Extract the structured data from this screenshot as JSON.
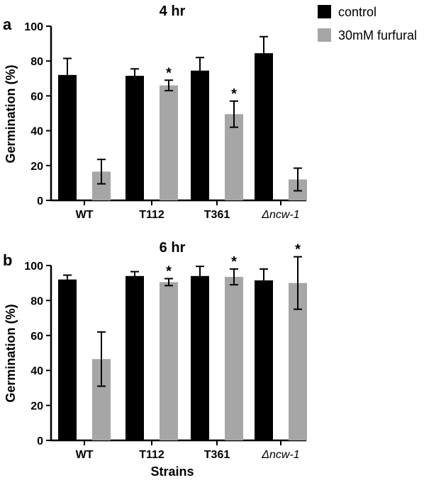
{
  "legend": {
    "position": "top-right",
    "items": [
      {
        "label": "control",
        "color": "#000000"
      },
      {
        "label": "30mM furfural",
        "color": "#a6a6a6"
      }
    ]
  },
  "xlabel": "Strains",
  "chart_data": [
    {
      "type": "bar",
      "panel_label": "a",
      "title": "4 hr",
      "xlabel": "",
      "ylabel": "Germination (%)",
      "ylim": [
        0,
        100
      ],
      "yticks": [
        "0",
        "20",
        "40",
        "60",
        "80",
        "100"
      ],
      "grid": false,
      "categories": [
        "WT",
        "T112",
        "T361",
        "Δncw-1"
      ],
      "series": [
        {
          "name": "control",
          "color": "#000000",
          "values": [
            72,
            71.5,
            74.5,
            84.5
          ],
          "errors": [
            9.5,
            4,
            7.5,
            9.5
          ],
          "stars": [
            false,
            false,
            false,
            false
          ]
        },
        {
          "name": "30mM furfural",
          "color": "#a6a6a6",
          "values": [
            16.5,
            66,
            49.5,
            12
          ],
          "errors": [
            7,
            3,
            7.5,
            6.5
          ],
          "stars": [
            false,
            true,
            true,
            false
          ]
        }
      ],
      "significance_marker": "*"
    },
    {
      "type": "bar",
      "panel_label": "b",
      "title": "6 hr",
      "xlabel": "Strains",
      "ylabel": "Germination (%)",
      "ylim": [
        0,
        100
      ],
      "yticks": [
        "0",
        "20",
        "40",
        "60",
        "80",
        "100"
      ],
      "grid": false,
      "categories": [
        "WT",
        "T112",
        "T361",
        "Δncw-1"
      ],
      "series": [
        {
          "name": "control",
          "color": "#000000",
          "values": [
            92,
            94,
            94,
            91.5
          ],
          "errors": [
            2.5,
            2.5,
            5.5,
            6.5
          ],
          "stars": [
            false,
            false,
            false,
            false
          ]
        },
        {
          "name": "30mM furfural",
          "color": "#a6a6a6",
          "values": [
            46.5,
            90.5,
            93.5,
            90
          ],
          "errors": [
            15.5,
            2,
            4.5,
            15
          ],
          "stars": [
            false,
            true,
            true,
            true
          ]
        }
      ],
      "significance_marker": "*"
    }
  ]
}
